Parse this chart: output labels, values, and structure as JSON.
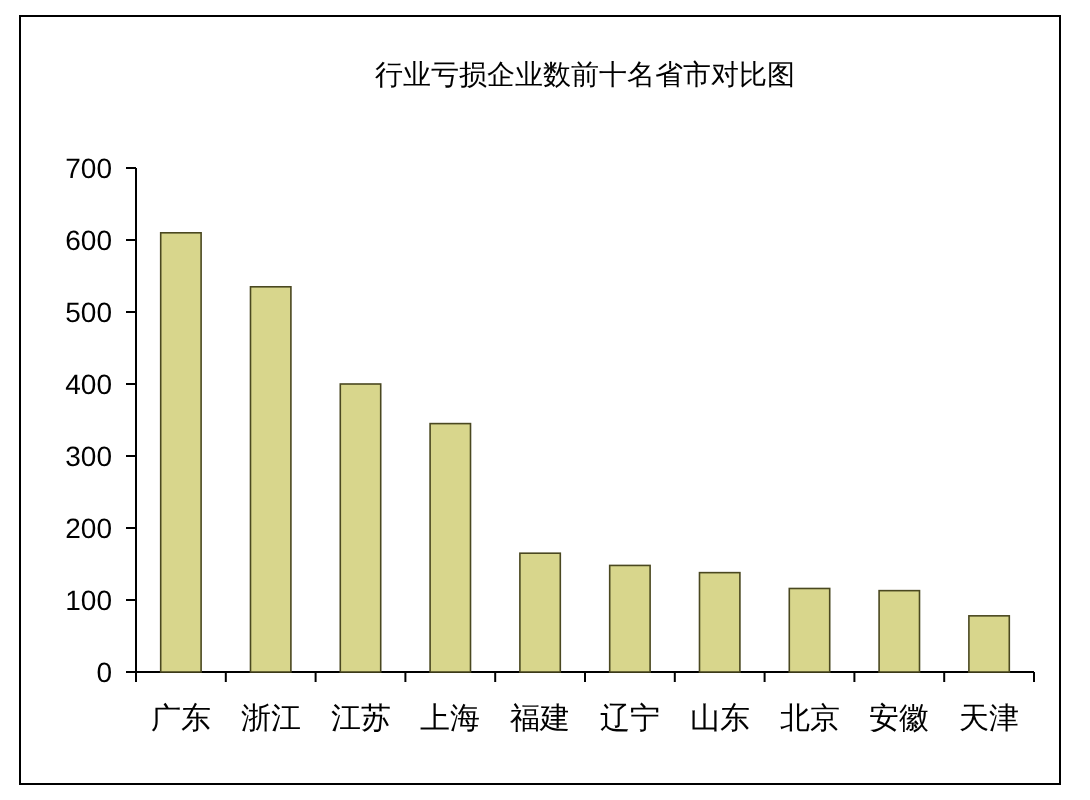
{
  "chart_data": {
    "type": "bar",
    "title": "行业亏损企业数前十名省市对比图",
    "categories": [
      "广东",
      "浙江",
      "江苏",
      "上海",
      "福建",
      "辽宁",
      "山东",
      "北京",
      "安徽",
      "天津"
    ],
    "values": [
      610,
      535,
      400,
      345,
      165,
      148,
      138,
      116,
      113,
      78
    ],
    "color": "#d8d68c",
    "ylim": [
      0,
      700
    ],
    "yticks": [
      0,
      100,
      200,
      300,
      400,
      500,
      600,
      700
    ]
  }
}
